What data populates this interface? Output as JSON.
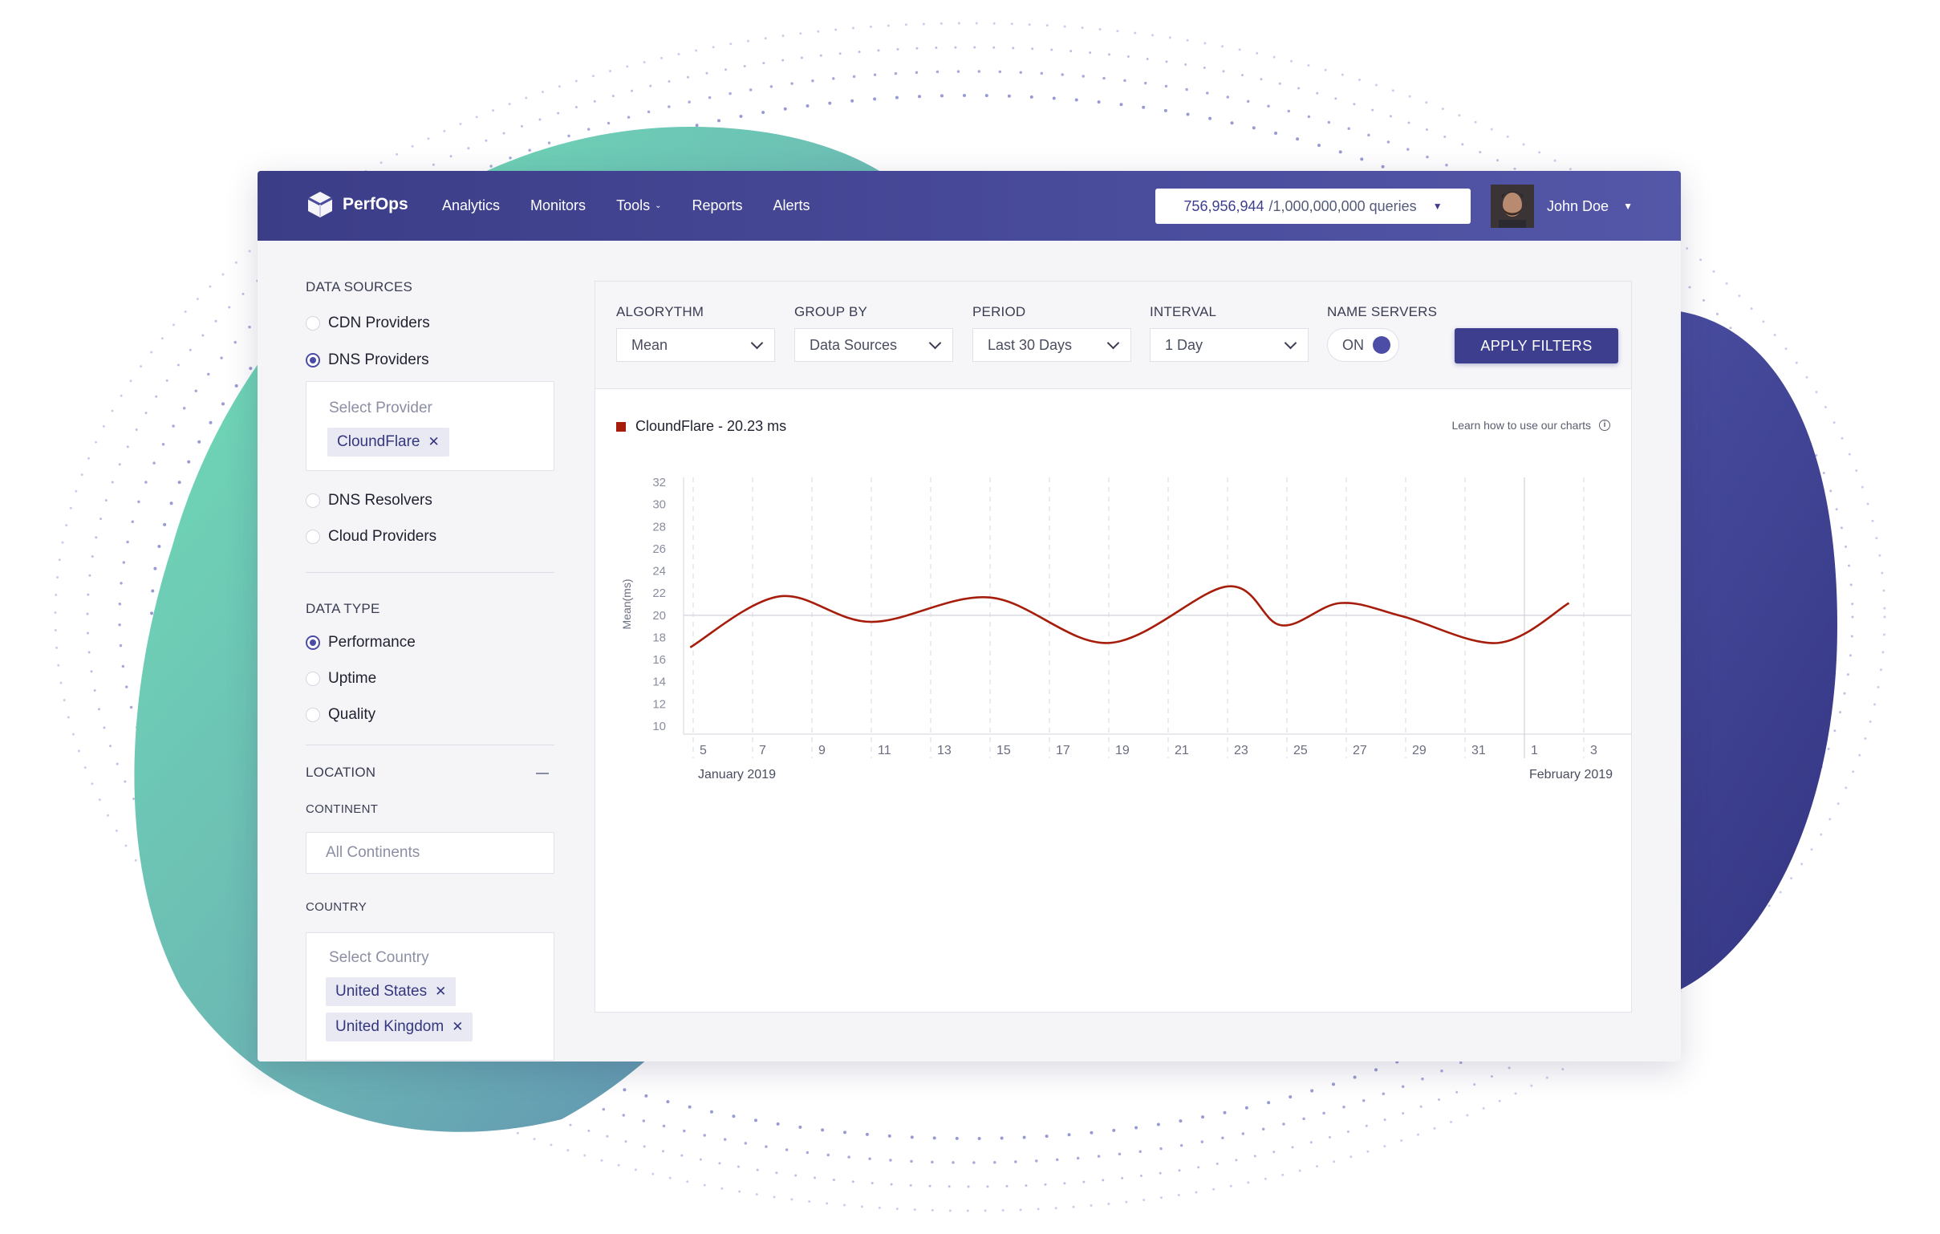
{
  "nav": {
    "brand": "PerfOps",
    "items": [
      {
        "label": "Analytics"
      },
      {
        "label": "Monitors"
      },
      {
        "label": "Tools",
        "has_dropdown": true
      },
      {
        "label": "Reports"
      },
      {
        "label": "Alerts"
      }
    ],
    "quota": {
      "used": "756,956,944",
      "limit": "/1,000,000,000 queries"
    },
    "user": {
      "name": "John Doe"
    }
  },
  "sidebar": {
    "data_sources": {
      "title": "DATA SOURCES",
      "options": [
        {
          "label": "CDN Providers",
          "selected": false
        },
        {
          "label": "DNS Providers",
          "selected": true
        },
        {
          "label": "DNS Resolvers",
          "selected": false
        },
        {
          "label": "Cloud Providers",
          "selected": false
        }
      ],
      "provider_placeholder": "Select Provider",
      "provider_chips": [
        "CloundFlare"
      ]
    },
    "data_type": {
      "title": "DATA TYPE",
      "options": [
        {
          "label": "Performance",
          "selected": true
        },
        {
          "label": "Uptime",
          "selected": false
        },
        {
          "label": "Quality",
          "selected": false
        }
      ]
    },
    "location": {
      "title": "LOCATION",
      "continent_label": "CONTINENT",
      "continent_placeholder": "All Continents",
      "country_label": "COUNTRY",
      "country_placeholder": "Select Country",
      "country_chips": [
        "United States",
        "United Kingdom"
      ]
    }
  },
  "filters": {
    "algorithm": {
      "label": "ALGORYTHM",
      "value": "Mean"
    },
    "group_by": {
      "label": "GROUP BY",
      "value": "Data Sources"
    },
    "period": {
      "label": "PERIOD",
      "value": "Last 30 Days"
    },
    "interval": {
      "label": "INTERVAL",
      "value": "1 Day"
    },
    "name_servers": {
      "label": "NAME SERVERS",
      "value": "ON"
    },
    "apply_label": "APPLY FILTERS"
  },
  "chart_header": {
    "legend_label": "CloundFlare - 20.23 ms",
    "help_text": "Learn how to use our charts"
  },
  "colors": {
    "accent": "#3d3f8e",
    "series": "#a61d0c",
    "nav_bg": "#464898",
    "teal_blob": "#6fdcb6",
    "purple_blob": "#3f4190"
  },
  "chart_data": {
    "type": "line",
    "ylabel": "Mean(ms)",
    "ylim": [
      10,
      32
    ],
    "y_ticks": [
      10,
      12,
      14,
      16,
      18,
      20,
      22,
      24,
      26,
      28,
      30,
      32
    ],
    "reference_line": 20,
    "x_tick_labels": [
      "5",
      "7",
      "9",
      "11",
      "13",
      "15",
      "17",
      "19",
      "21",
      "23",
      "25",
      "27",
      "29",
      "31",
      "1",
      "3"
    ],
    "x_group_labels": [
      {
        "label": "January 2019",
        "at": "5"
      },
      {
        "label": "February 2019",
        "at": "1"
      }
    ],
    "series": [
      {
        "name": "CloundFlare",
        "color": "#a61d0c",
        "x": [
          4.9,
          7.9,
          11,
          15,
          19,
          23,
          24.8,
          26.8,
          28.9,
          32.1,
          34.5
        ],
        "values": [
          17.1,
          21.7,
          19.4,
          21.6,
          17.5,
          22.6,
          19.1,
          21.1,
          19.9,
          17.5,
          21.1
        ]
      }
    ]
  }
}
